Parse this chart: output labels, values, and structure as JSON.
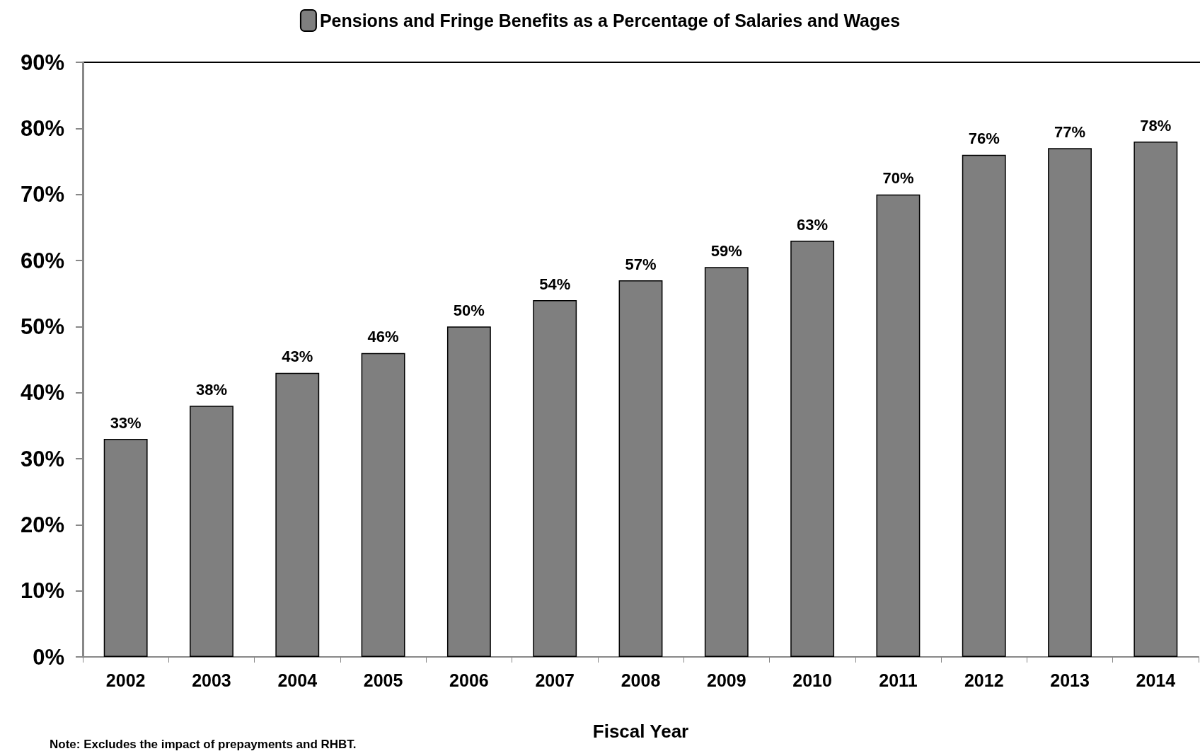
{
  "chart_data": {
    "type": "bar",
    "categories": [
      "2002",
      "2003",
      "2004",
      "2005",
      "2006",
      "2007",
      "2008",
      "2009",
      "2010",
      "2011",
      "2012",
      "2013",
      "2014"
    ],
    "series": [
      {
        "name": "Pensions and Fringe Benefits as a Percentage of Salaries and Wages",
        "color": "#7f7f7f",
        "values": [
          33,
          38,
          43,
          46,
          50,
          54,
          57,
          59,
          63,
          70,
          76,
          77,
          78
        ],
        "value_labels": [
          "33%",
          "38%",
          "43%",
          "46%",
          "50%",
          "54%",
          "57%",
          "59%",
          "63%",
          "70%",
          "76%",
          "77%",
          "78%"
        ]
      }
    ],
    "xlabel": "Fiscal Year",
    "ylim": [
      0,
      90
    ],
    "yticks": [
      {
        "value": 0,
        "label": "0%"
      },
      {
        "value": 10,
        "label": "10%"
      },
      {
        "value": 20,
        "label": "20%"
      },
      {
        "value": 30,
        "label": "30%"
      },
      {
        "value": 40,
        "label": "40%"
      },
      {
        "value": 50,
        "label": "50%"
      },
      {
        "value": 60,
        "label": "60%"
      },
      {
        "value": 70,
        "label": "70%"
      },
      {
        "value": 80,
        "label": "80%"
      },
      {
        "value": 90,
        "label": "90%"
      }
    ],
    "annotations": [
      "Note: Excludes the impact of prepayments and RHBT."
    ],
    "legend": "top",
    "grid": false
  }
}
